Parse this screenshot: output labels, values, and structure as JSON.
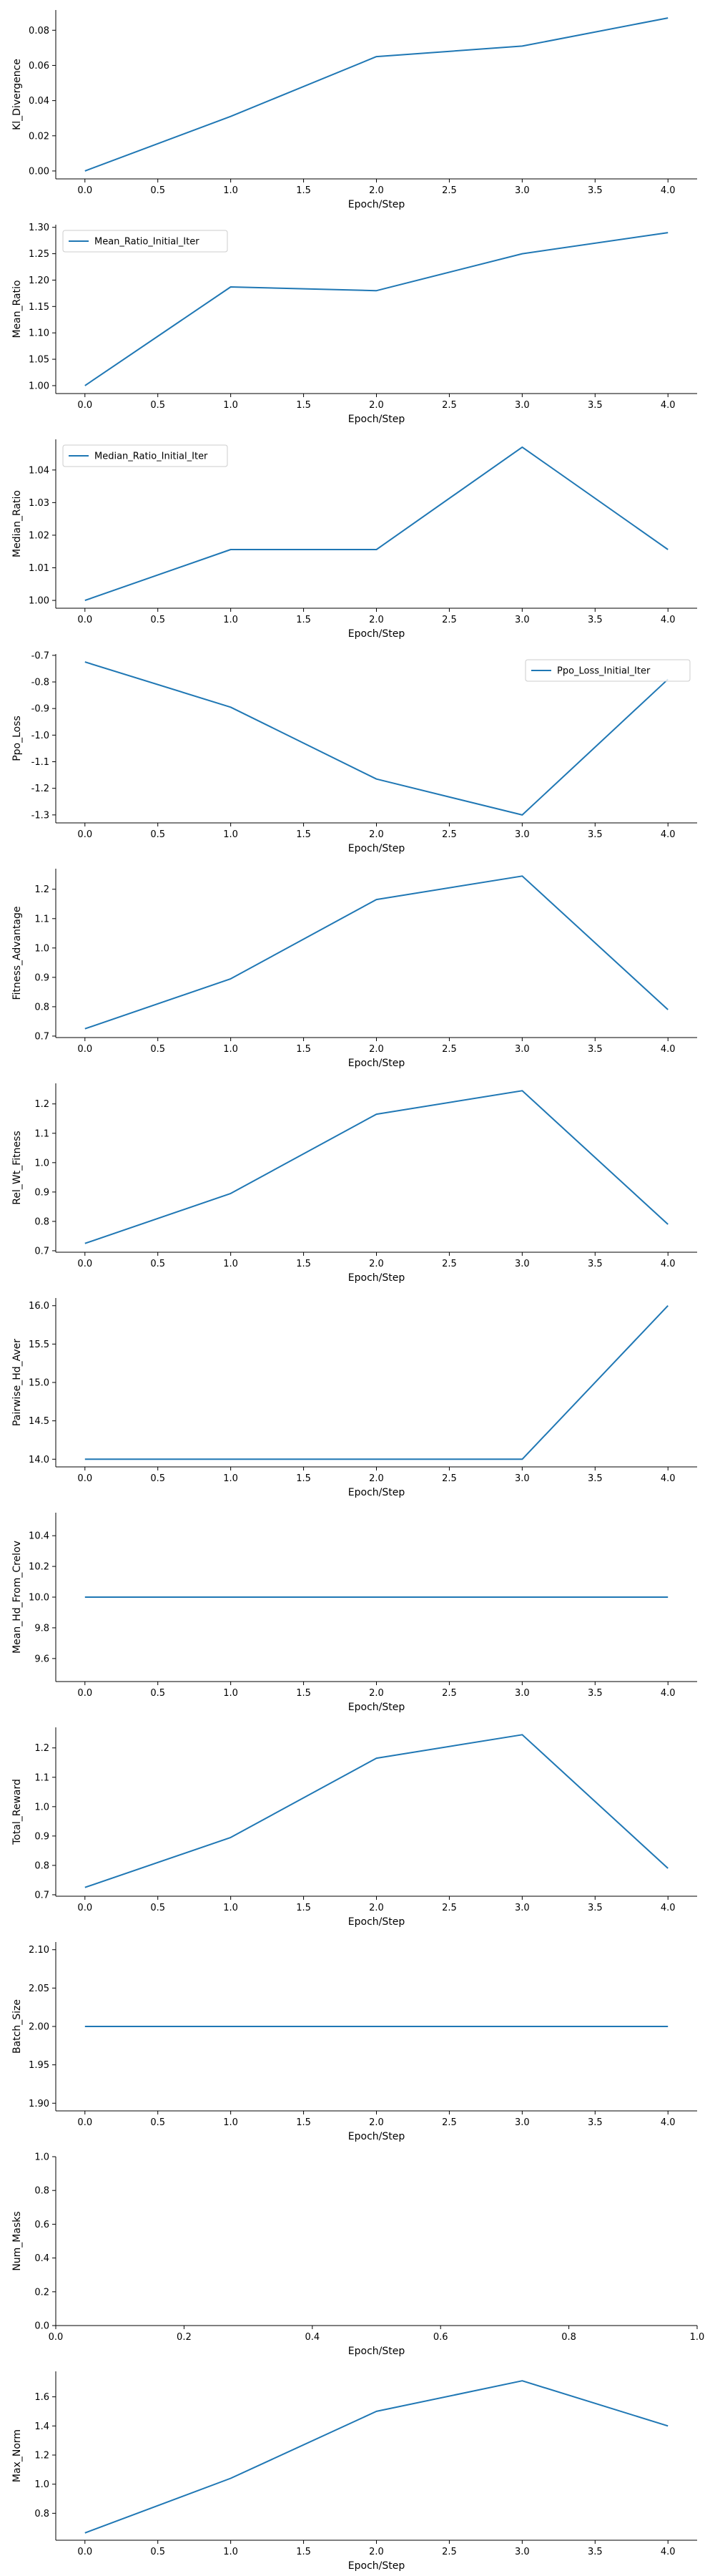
{
  "colors": {
    "line": "#1f77b4",
    "axis": "#000000",
    "legend_border": "#cccccc"
  },
  "chart_data": [
    {
      "type": "line",
      "xlabel": "Epoch/Step",
      "ylabel": "Kl_Divergence",
      "x": [
        0,
        1,
        2,
        3,
        4
      ],
      "xlim": [
        -0.2,
        4.2
      ],
      "x_ticks": [
        "0.0",
        "0.5",
        "1.0",
        "1.5",
        "2.0",
        "2.5",
        "3.0",
        "3.5",
        "4.0"
      ],
      "ylim": [
        -0.0045,
        0.0915
      ],
      "y_ticks": [
        "0.00",
        "0.02",
        "0.04",
        "0.06",
        "0.08"
      ],
      "series": [
        {
          "values": [
            0.0,
            0.031,
            0.065,
            0.071,
            0.087
          ]
        }
      ]
    },
    {
      "type": "line",
      "xlabel": "Epoch/Step",
      "ylabel": "Mean_Ratio",
      "x": [
        0,
        1,
        2,
        3,
        4
      ],
      "xlim": [
        -0.2,
        4.2
      ],
      "x_ticks": [
        "0.0",
        "0.5",
        "1.0",
        "1.5",
        "2.0",
        "2.5",
        "3.0",
        "3.5",
        "4.0"
      ],
      "ylim": [
        0.985,
        1.305
      ],
      "y_ticks": [
        "1.00",
        "1.05",
        "1.10",
        "1.15",
        "1.20",
        "1.25",
        "1.30"
      ],
      "legend": "upper-left",
      "series": [
        {
          "name": "Mean_Ratio_Initial_Iter",
          "values": [
            1.0,
            1.187,
            1.18,
            1.25,
            1.29
          ]
        }
      ]
    },
    {
      "type": "line",
      "xlabel": "Epoch/Step",
      "ylabel": "Median_Ratio",
      "x": [
        0,
        1,
        2,
        3,
        4
      ],
      "xlim": [
        -0.2,
        4.2
      ],
      "x_ticks": [
        "0.0",
        "0.5",
        "1.0",
        "1.5",
        "2.0",
        "2.5",
        "3.0",
        "3.5",
        "4.0"
      ],
      "ylim": [
        0.9976,
        1.0494
      ],
      "y_ticks": [
        "1.00",
        "1.01",
        "1.02",
        "1.03",
        "1.04"
      ],
      "legend": "upper-left",
      "series": [
        {
          "name": "Median_Ratio_Initial_Iter",
          "values": [
            1.0,
            1.0156,
            1.0156,
            1.047,
            1.0156
          ]
        }
      ]
    },
    {
      "type": "line",
      "xlabel": "Epoch/Step",
      "ylabel": "Ppo_Loss",
      "x": [
        0,
        1,
        2,
        3,
        4
      ],
      "xlim": [
        -0.2,
        4.2
      ],
      "x_ticks": [
        "0.0",
        "0.5",
        "1.0",
        "1.5",
        "2.0",
        "2.5",
        "3.0",
        "3.5",
        "4.0"
      ],
      "ylim": [
        -1.33,
        -0.695
      ],
      "y_ticks": [
        "-1.3",
        "-1.2",
        "-1.1",
        "-1.0",
        "-0.9",
        "-0.8",
        "-0.7"
      ],
      "legend": "upper-right",
      "series": [
        {
          "name": "Ppo_Loss_Initial_Iter",
          "values": [
            -0.725,
            -0.895,
            -1.165,
            -1.3,
            -0.79
          ]
        }
      ]
    },
    {
      "type": "line",
      "xlabel": "Epoch/Step",
      "ylabel": "Fitness_Advantage",
      "x": [
        0,
        1,
        2,
        3,
        4
      ],
      "xlim": [
        -0.2,
        4.2
      ],
      "x_ticks": [
        "0.0",
        "0.5",
        "1.0",
        "1.5",
        "2.0",
        "2.5",
        "3.0",
        "3.5",
        "4.0"
      ],
      "ylim": [
        0.695,
        1.27
      ],
      "y_ticks": [
        "0.7",
        "0.8",
        "0.9",
        "1.0",
        "1.1",
        "1.2"
      ],
      "series": [
        {
          "values": [
            0.725,
            0.895,
            1.165,
            1.245,
            0.79
          ]
        }
      ]
    },
    {
      "type": "line",
      "xlabel": "Epoch/Step",
      "ylabel": "Rel_Wt_Fitness",
      "x": [
        0,
        1,
        2,
        3,
        4
      ],
      "xlim": [
        -0.2,
        4.2
      ],
      "x_ticks": [
        "0.0",
        "0.5",
        "1.0",
        "1.5",
        "2.0",
        "2.5",
        "3.0",
        "3.5",
        "4.0"
      ],
      "ylim": [
        0.695,
        1.27
      ],
      "y_ticks": [
        "0.7",
        "0.8",
        "0.9",
        "1.0",
        "1.1",
        "1.2"
      ],
      "series": [
        {
          "values": [
            0.725,
            0.895,
            1.165,
            1.245,
            0.79
          ]
        }
      ]
    },
    {
      "type": "line",
      "xlabel": "Epoch/Step",
      "ylabel": "Pairwise_Hd_Aver",
      "x": [
        0,
        1,
        2,
        3,
        4
      ],
      "xlim": [
        -0.2,
        4.2
      ],
      "x_ticks": [
        "0.0",
        "0.5",
        "1.0",
        "1.5",
        "2.0",
        "2.5",
        "3.0",
        "3.5",
        "4.0"
      ],
      "ylim": [
        13.9,
        16.1
      ],
      "y_ticks": [
        "14.0",
        "14.5",
        "15.0",
        "15.5",
        "16.0"
      ],
      "series": [
        {
          "values": [
            14.0,
            14.0,
            14.0,
            14.0,
            16.0
          ]
        }
      ]
    },
    {
      "type": "line",
      "xlabel": "Epoch/Step",
      "ylabel": "Mean_Hd_From_Crelov",
      "x": [
        0,
        1,
        2,
        3,
        4
      ],
      "xlim": [
        -0.2,
        4.2
      ],
      "x_ticks": [
        "0.0",
        "0.5",
        "1.0",
        "1.5",
        "2.0",
        "2.5",
        "3.0",
        "3.5",
        "4.0"
      ],
      "ylim": [
        9.45,
        10.55
      ],
      "y_ticks": [
        "9.6",
        "9.8",
        "10.0",
        "10.2",
        "10.4"
      ],
      "series": [
        {
          "values": [
            10.0,
            10.0,
            10.0,
            10.0,
            10.0
          ]
        }
      ]
    },
    {
      "type": "line",
      "xlabel": "Epoch/Step",
      "ylabel": "Total_Reward",
      "x": [
        0,
        1,
        2,
        3,
        4
      ],
      "xlim": [
        -0.2,
        4.2
      ],
      "x_ticks": [
        "0.0",
        "0.5",
        "1.0",
        "1.5",
        "2.0",
        "2.5",
        "3.0",
        "3.5",
        "4.0"
      ],
      "ylim": [
        0.695,
        1.27
      ],
      "y_ticks": [
        "0.7",
        "0.8",
        "0.9",
        "1.0",
        "1.1",
        "1.2"
      ],
      "series": [
        {
          "values": [
            0.725,
            0.895,
            1.165,
            1.245,
            0.79
          ]
        }
      ]
    },
    {
      "type": "line",
      "xlabel": "Epoch/Step",
      "ylabel": "Batch_Size",
      "x": [
        0,
        1,
        2,
        3,
        4
      ],
      "xlim": [
        -0.2,
        4.2
      ],
      "x_ticks": [
        "0.0",
        "0.5",
        "1.0",
        "1.5",
        "2.0",
        "2.5",
        "3.0",
        "3.5",
        "4.0"
      ],
      "ylim": [
        1.89,
        2.11
      ],
      "y_ticks": [
        "1.90",
        "1.95",
        "2.00",
        "2.05",
        "2.10"
      ],
      "series": [
        {
          "values": [
            2.0,
            2.0,
            2.0,
            2.0,
            2.0
          ]
        }
      ]
    },
    {
      "type": "line",
      "xlabel": "Epoch/Step",
      "ylabel": "Num_Masks",
      "x": [],
      "xlim": [
        0.0,
        1.0
      ],
      "x_ticks": [
        "0.0",
        "0.2",
        "0.4",
        "0.6",
        "0.8",
        "1.0"
      ],
      "ylim": [
        0.0,
        1.0
      ],
      "y_ticks": [
        "0.0",
        "0.2",
        "0.4",
        "0.6",
        "0.8",
        "1.0"
      ],
      "series": [
        {
          "values": []
        }
      ]
    },
    {
      "type": "line",
      "xlabel": "Epoch/Step",
      "ylabel": "Max_Norm",
      "x": [
        0,
        1,
        2,
        3,
        4
      ],
      "xlim": [
        -0.2,
        4.2
      ],
      "x_ticks": [
        "0.0",
        "0.5",
        "1.0",
        "1.5",
        "2.0",
        "2.5",
        "3.0",
        "3.5",
        "4.0"
      ],
      "ylim": [
        0.615,
        1.775
      ],
      "y_ticks": [
        "0.8",
        "1.0",
        "1.2",
        "1.4",
        "1.6"
      ],
      "series": [
        {
          "values": [
            0.665,
            1.04,
            1.5,
            1.71,
            1.4
          ]
        }
      ]
    }
  ]
}
